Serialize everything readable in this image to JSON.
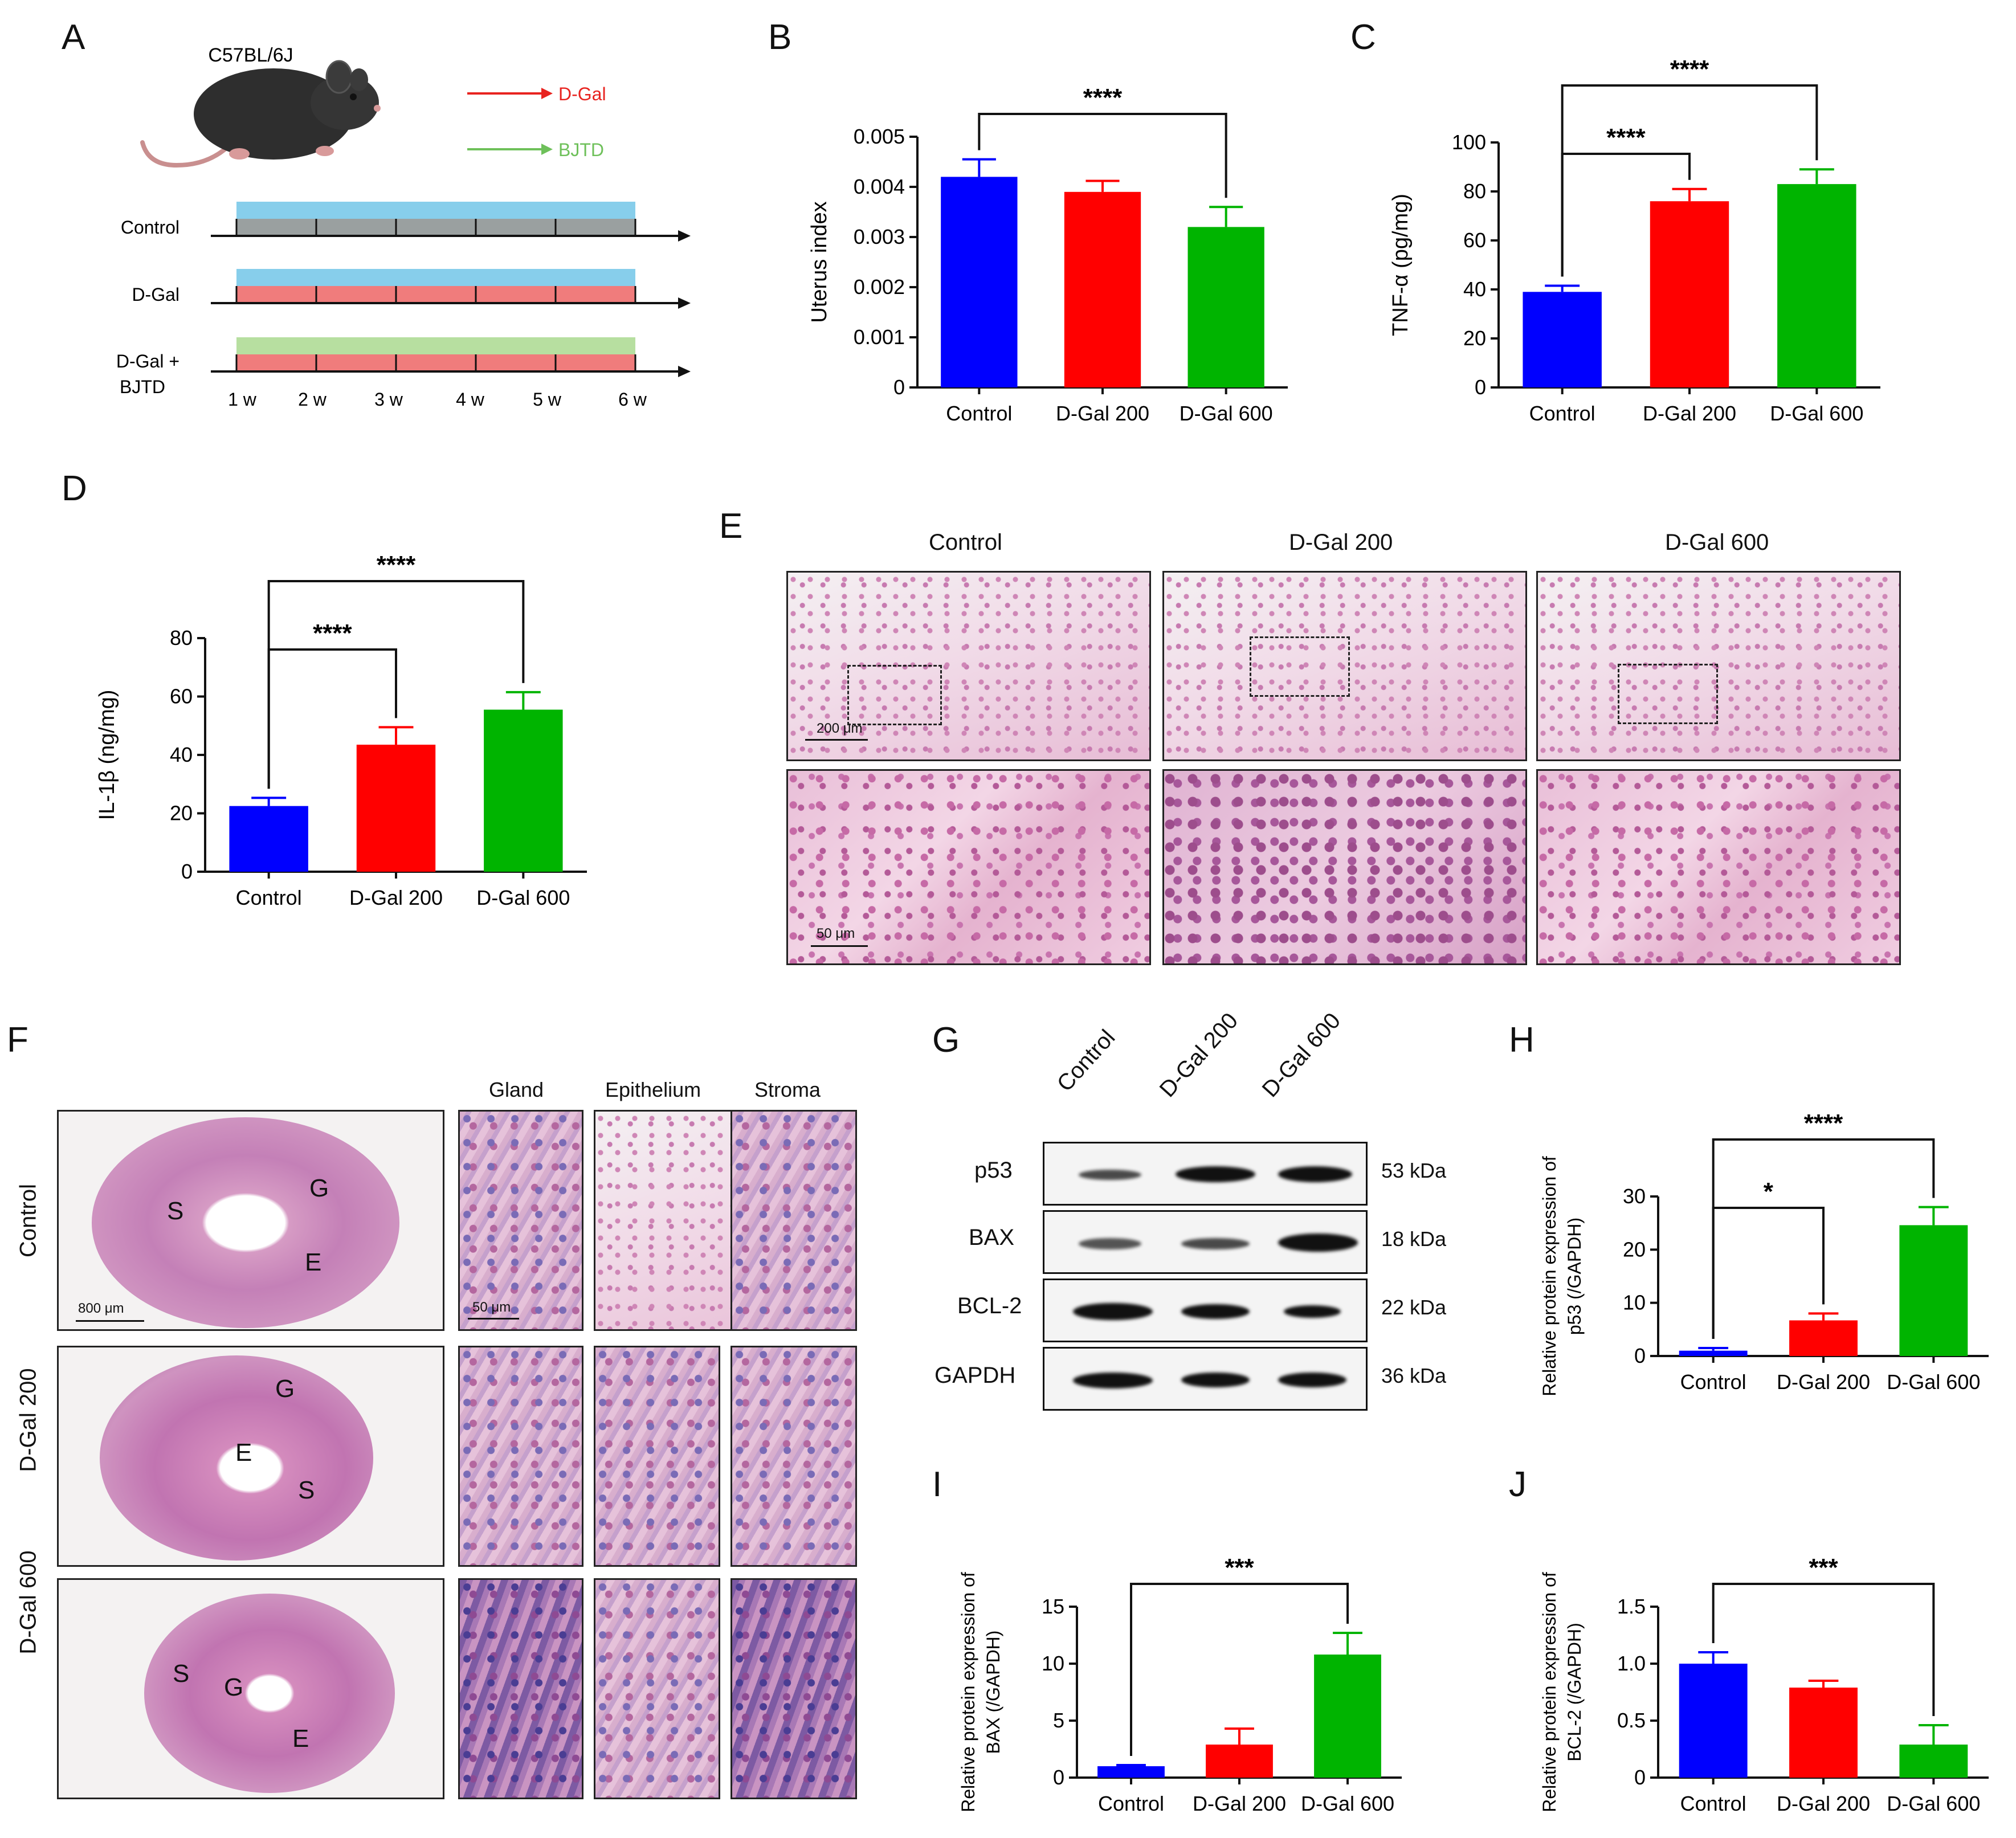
{
  "panels": {
    "A": "A",
    "B": "B",
    "C": "C",
    "D": "D",
    "E": "E",
    "F": "F",
    "G": "G",
    "H": "H",
    "I": "I",
    "J": "J"
  },
  "schematic": {
    "strain": "C57BL/6J",
    "legend": [
      {
        "label": "D-Gal",
        "color": "#e8231f"
      },
      {
        "label": "BJTD",
        "color": "#6ec05a"
      }
    ],
    "groups": [
      "Control",
      "D-Gal",
      "D-Gal +",
      "BJTD"
    ],
    "weeks": [
      "1 w",
      "2 w",
      "3 w",
      "4 w",
      "5 w",
      "6 w"
    ]
  },
  "histology_E": {
    "columns": [
      "Control",
      "D-Gal 200",
      "D-Gal 600"
    ],
    "scale_top": "200 μm",
    "scale_bottom": "50 μm"
  },
  "histology_F": {
    "rows": [
      "Control",
      "D-Gal 200",
      "D-Gal 600"
    ],
    "columns": [
      "Gland",
      "Epithelium",
      "Stroma"
    ],
    "scale_left": "800 μm",
    "scale_right": "50 μm",
    "marks": [
      "S",
      "G",
      "E"
    ]
  },
  "western_G": {
    "lanes": [
      "Control",
      "D-Gal 200",
      "D-Gal 600"
    ],
    "proteins": [
      {
        "name": "p53",
        "kda": "53 kDa"
      },
      {
        "name": "BAX",
        "kda": "18 kDa"
      },
      {
        "name": "BCL-2",
        "kda": "22 kDa"
      },
      {
        "name": "GAPDH",
        "kda": "36 kDa"
      }
    ]
  },
  "colors": {
    "blue": "#0000ff",
    "red": "#ff0000",
    "green": "#00b400"
  },
  "chart_data": [
    {
      "panel": "B",
      "type": "bar",
      "categories": [
        "Control",
        "D-Gal 200",
        "D-Gal 600"
      ],
      "values": [
        0.0042,
        0.0039,
        0.0032
      ],
      "errors": [
        0.00035,
        0.00022,
        0.0004
      ],
      "ylabel": "Uterus index",
      "ylim": [
        0,
        0.005
      ],
      "yticks": [
        "0",
        "0.001",
        "0.002",
        "0.003",
        "0.004",
        "0.005"
      ],
      "significance": [
        {
          "from": 0,
          "to": 2,
          "label": "****"
        }
      ]
    },
    {
      "panel": "C",
      "type": "bar",
      "categories": [
        "Control",
        "D-Gal 200",
        "D-Gal 600"
      ],
      "values": [
        39,
        76,
        83
      ],
      "errors": [
        2.5,
        5,
        6
      ],
      "ylabel": "TNF-α (pg/mg)",
      "ylim": [
        0,
        100
      ],
      "yticks": [
        "0",
        "20",
        "40",
        "60",
        "80",
        "100"
      ],
      "significance": [
        {
          "from": 0,
          "to": 1,
          "label": "****"
        },
        {
          "from": 0,
          "to": 2,
          "label": "****"
        }
      ]
    },
    {
      "panel": "D",
      "type": "bar",
      "categories": [
        "Control",
        "D-Gal 200",
        "D-Gal 600"
      ],
      "values": [
        22.5,
        43.5,
        55.5
      ],
      "errors": [
        2.8,
        6,
        6
      ],
      "ylabel": "IL-1β (ng/mg)",
      "ylim": [
        0,
        80
      ],
      "yticks": [
        "0",
        "20",
        "40",
        "60",
        "80"
      ],
      "significance": [
        {
          "from": 0,
          "to": 1,
          "label": "****"
        },
        {
          "from": 0,
          "to": 2,
          "label": "****"
        }
      ]
    },
    {
      "panel": "H",
      "type": "bar",
      "categories": [
        "Control",
        "D-Gal 200",
        "D-Gal 600"
      ],
      "values": [
        1,
        6.7,
        24.6
      ],
      "errors": [
        0.5,
        1.3,
        3.4
      ],
      "ylabel": [
        "Relative protein expression of",
        "p53 (/GAPDH)"
      ],
      "ylim": [
        0,
        30
      ],
      "yticks": [
        "0",
        "10",
        "20",
        "30"
      ],
      "significance": [
        {
          "from": 0,
          "to": 1,
          "label": "*"
        },
        {
          "from": 0,
          "to": 2,
          "label": "****"
        }
      ]
    },
    {
      "panel": "I",
      "type": "bar",
      "categories": [
        "Control",
        "D-Gal 200",
        "D-Gal 600"
      ],
      "values": [
        1,
        2.9,
        10.8
      ],
      "errors": [
        0.1,
        1.4,
        1.9
      ],
      "ylabel": [
        "Relative protein expression of",
        "BAX (/GAPDH)"
      ],
      "ylim": [
        0,
        15
      ],
      "yticks": [
        "0",
        "5",
        "10",
        "15"
      ],
      "significance": [
        {
          "from": 0,
          "to": 2,
          "label": "***"
        }
      ]
    },
    {
      "panel": "J",
      "type": "bar",
      "categories": [
        "Control",
        "D-Gal 200",
        "D-Gal 600"
      ],
      "values": [
        1.0,
        0.79,
        0.29
      ],
      "errors": [
        0.1,
        0.06,
        0.17
      ],
      "ylabel": [
        "Relative protein expression of",
        "BCL-2 (/GAPDH)"
      ],
      "ylim": [
        0,
        1.5
      ],
      "yticks": [
        "0",
        "0.5",
        "1.0",
        "1.5"
      ],
      "significance": [
        {
          "from": 0,
          "to": 2,
          "label": "***"
        }
      ]
    }
  ]
}
